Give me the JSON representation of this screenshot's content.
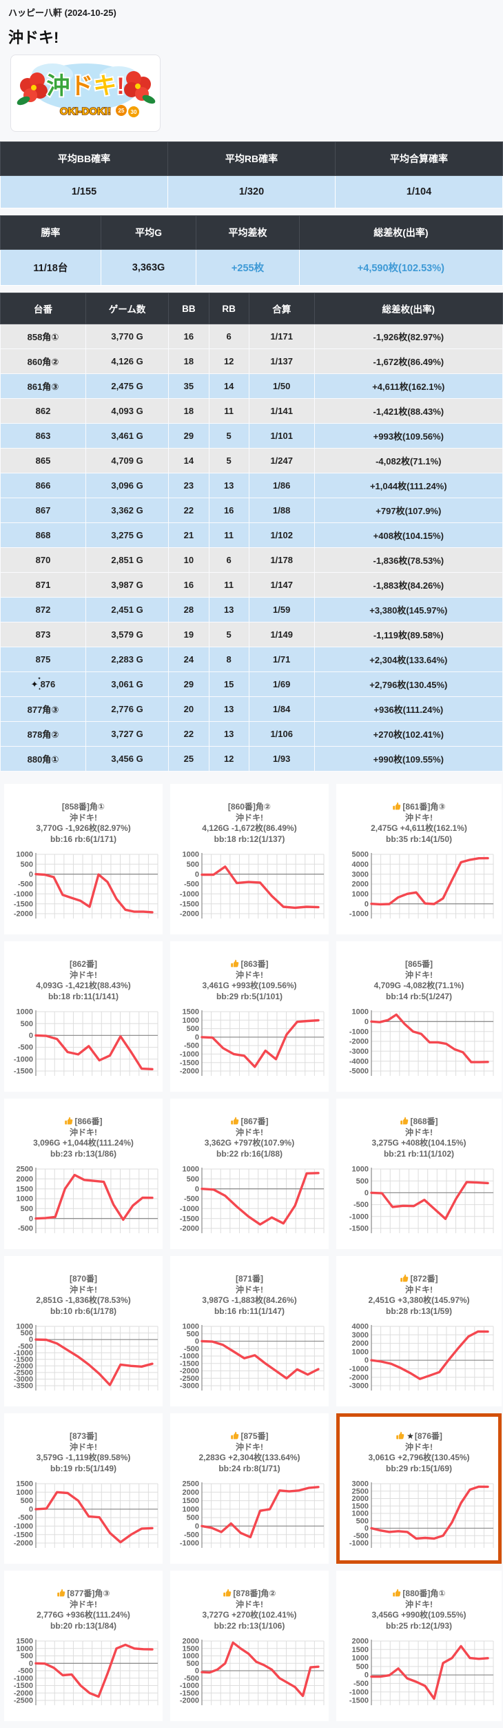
{
  "page": {
    "hall_name": "ハッピー八軒 (2024-10-25)",
    "machine_title": "沖ドキ!",
    "logo_alt": "沖ドキ!",
    "logo_banner": "OKI-DOKI!"
  },
  "icons": {
    "sparkles": "✦",
    "star": "★"
  },
  "colors": {
    "header_bg": "#31363d",
    "positive_row_bg": "#c9e2f6",
    "negative_row_bg": "#e9e9e9",
    "accent_blue": "#3f9ad6",
    "chart_line": "#f4474f",
    "highlight_border": "#d2500a",
    "page_bg": "#f7f8fa"
  },
  "summary_prob": {
    "headers": [
      "平均BB確率",
      "平均RB確率",
      "平均合算確率"
    ],
    "values": [
      "1/155",
      "1/320",
      "1/104"
    ]
  },
  "summary_result": {
    "headers": [
      "勝率",
      "平均G",
      "平均差枚",
      "総差枚(出率)"
    ],
    "values": [
      {
        "text": "11/18台",
        "highlight": false
      },
      {
        "text": "3,363G",
        "highlight": false
      },
      {
        "text": "+255枚",
        "highlight": true
      },
      {
        "text": "+4,590枚(102.53%)",
        "highlight": true
      }
    ]
  },
  "machine_table": {
    "headers": [
      "台番",
      "ゲーム数",
      "BB",
      "RB",
      "合算",
      "総差枚(出率)"
    ],
    "rows": [
      {
        "dai": "858角①",
        "games": "3,770 G",
        "bb": "16",
        "rb": "6",
        "gassan": "1/171",
        "total": "-1,926枚(82.97%)",
        "positive": false,
        "sparkle": false
      },
      {
        "dai": "860角②",
        "games": "4,126 G",
        "bb": "18",
        "rb": "12",
        "gassan": "1/137",
        "total": "-1,672枚(86.49%)",
        "positive": false,
        "sparkle": false
      },
      {
        "dai": "861角③",
        "games": "2,475 G",
        "bb": "35",
        "rb": "14",
        "gassan": "1/50",
        "total": "+4,611枚(162.1%)",
        "positive": true,
        "sparkle": false
      },
      {
        "dai": "862",
        "games": "4,093 G",
        "bb": "18",
        "rb": "11",
        "gassan": "1/141",
        "total": "-1,421枚(88.43%)",
        "positive": false,
        "sparkle": false
      },
      {
        "dai": "863",
        "games": "3,461 G",
        "bb": "29",
        "rb": "5",
        "gassan": "1/101",
        "total": "+993枚(109.56%)",
        "positive": true,
        "sparkle": false
      },
      {
        "dai": "865",
        "games": "4,709 G",
        "bb": "14",
        "rb": "5",
        "gassan": "1/247",
        "total": "-4,082枚(71.1%)",
        "positive": false,
        "sparkle": false
      },
      {
        "dai": "866",
        "games": "3,096 G",
        "bb": "23",
        "rb": "13",
        "gassan": "1/86",
        "total": "+1,044枚(111.24%)",
        "positive": true,
        "sparkle": false
      },
      {
        "dai": "867",
        "games": "3,362 G",
        "bb": "22",
        "rb": "16",
        "gassan": "1/88",
        "total": "+797枚(107.9%)",
        "positive": true,
        "sparkle": false
      },
      {
        "dai": "868",
        "games": "3,275 G",
        "bb": "21",
        "rb": "11",
        "gassan": "1/102",
        "total": "+408枚(104.15%)",
        "positive": true,
        "sparkle": false
      },
      {
        "dai": "870",
        "games": "2,851 G",
        "bb": "10",
        "rb": "6",
        "gassan": "1/178",
        "total": "-1,836枚(78.53%)",
        "positive": false,
        "sparkle": false
      },
      {
        "dai": "871",
        "games": "3,987 G",
        "bb": "16",
        "rb": "11",
        "gassan": "1/147",
        "total": "-1,883枚(84.26%)",
        "positive": false,
        "sparkle": false
      },
      {
        "dai": "872",
        "games": "2,451 G",
        "bb": "28",
        "rb": "13",
        "gassan": "1/59",
        "total": "+3,380枚(145.97%)",
        "positive": true,
        "sparkle": false
      },
      {
        "dai": "873",
        "games": "3,579 G",
        "bb": "19",
        "rb": "5",
        "gassan": "1/149",
        "total": "-1,119枚(89.58%)",
        "positive": false,
        "sparkle": false
      },
      {
        "dai": "875",
        "games": "2,283 G",
        "bb": "24",
        "rb": "8",
        "gassan": "1/71",
        "total": "+2,304枚(133.64%)",
        "positive": true,
        "sparkle": false
      },
      {
        "dai": "876",
        "games": "3,061 G",
        "bb": "29",
        "rb": "15",
        "gassan": "1/69",
        "total": "+2,796枚(130.45%)",
        "positive": true,
        "sparkle": true
      },
      {
        "dai": "877角③",
        "games": "2,776 G",
        "bb": "20",
        "rb": "13",
        "gassan": "1/84",
        "total": "+936枚(111.24%)",
        "positive": true,
        "sparkle": false
      },
      {
        "dai": "878角②",
        "games": "3,727 G",
        "bb": "22",
        "rb": "13",
        "gassan": "1/106",
        "total": "+270枚(102.41%)",
        "positive": true,
        "sparkle": false
      },
      {
        "dai": "880角①",
        "games": "3,456 G",
        "bb": "25",
        "rb": "12",
        "gassan": "1/93",
        "total": "+990枚(109.55%)",
        "positive": true,
        "sparkle": false
      }
    ]
  },
  "chart_data": [
    {
      "type": "line",
      "label": "[858番]角①",
      "thumb": false,
      "star": false,
      "subtitle": "沖ドキ!",
      "stats": "3,770G -1,926枚(82.97%)",
      "bb_rb": "bb:16 rb:6(1/171)",
      "highlight": false,
      "yticks": [
        1000,
        500,
        0,
        -500,
        -1000,
        -1500,
        -2000
      ],
      "values": [
        0,
        -30,
        -150,
        -1050,
        -1200,
        -1350,
        -1650,
        -20,
        -400,
        -1250,
        -1800,
        -1900,
        -1900,
        -1926
      ]
    },
    {
      "type": "line",
      "label": "[860番]角②",
      "thumb": false,
      "star": false,
      "subtitle": "沖ドキ!",
      "stats": "4,126G -1,672枚(86.49%)",
      "bb_rb": "bb:18 rb:12(1/137)",
      "highlight": false,
      "yticks": [
        1000,
        500,
        0,
        -500,
        -1000,
        -1500,
        -2000
      ],
      "values": [
        -30,
        -30,
        380,
        -450,
        -400,
        -430,
        -1100,
        -1650,
        -1700,
        -1650,
        -1672
      ]
    },
    {
      "type": "line",
      "label": "[861番]角③",
      "thumb": true,
      "star": false,
      "subtitle": "沖ドキ!",
      "stats": "2,475G +4,611枚(162.1%)",
      "bb_rb": "bb:35 rb:14(1/50)",
      "highlight": false,
      "yticks": [
        5000,
        4000,
        3000,
        2000,
        1000,
        0,
        -1000
      ],
      "values": [
        0,
        -50,
        -20,
        650,
        1000,
        1150,
        30,
        -20,
        550,
        2400,
        4200,
        4450,
        4600,
        4611
      ]
    },
    {
      "type": "line",
      "label": "[862番]",
      "thumb": false,
      "star": false,
      "subtitle": "沖ドキ!",
      "stats": "4,093G -1,421枚(88.43%)",
      "bb_rb": "bb:18 rb:11(1/141)",
      "highlight": false,
      "yticks": [
        1000,
        500,
        0,
        -500,
        -1000,
        -1500
      ],
      "values": [
        0,
        -20,
        -150,
        -700,
        -800,
        -450,
        -1050,
        -850,
        -40,
        -700,
        -1400,
        -1421
      ]
    },
    {
      "type": "line",
      "label": "[863番]",
      "thumb": true,
      "star": false,
      "subtitle": "沖ドキ!",
      "stats": "3,461G +993枚(109.56%)",
      "bb_rb": "bb:29 rb:5(1/101)",
      "highlight": false,
      "yticks": [
        1500,
        1000,
        500,
        0,
        -500,
        -1000,
        -1500,
        -2000
      ],
      "values": [
        0,
        -30,
        -650,
        -1000,
        -1100,
        -1750,
        -800,
        -1300,
        150,
        900,
        950,
        993
      ]
    },
    {
      "type": "line",
      "label": "[865番]",
      "thumb": false,
      "star": false,
      "subtitle": "沖ドキ!",
      "stats": "4,709G -4,082枚(71.1%)",
      "bb_rb": "bb:14 rb:5(1/247)",
      "highlight": false,
      "yticks": [
        1000,
        0,
        -1000,
        -2000,
        -3000,
        -4000,
        -5000
      ],
      "values": [
        0,
        -60,
        150,
        700,
        -250,
        -1000,
        -1250,
        -2100,
        -2100,
        -2250,
        -2800,
        -3100,
        -4100,
        -4100,
        -4082
      ]
    },
    {
      "type": "line",
      "label": "[866番]",
      "thumb": true,
      "star": false,
      "subtitle": "沖ドキ!",
      "stats": "3,096G +1,044枚(111.24%)",
      "bb_rb": "bb:23 rb:13(1/86)",
      "highlight": false,
      "yticks": [
        2500,
        2000,
        1500,
        1000,
        500,
        0,
        -500
      ],
      "values": [
        0,
        20,
        80,
        1500,
        2200,
        1950,
        1900,
        1850,
        700,
        -60,
        650,
        1050,
        1044
      ]
    },
    {
      "type": "line",
      "label": "[867番]",
      "thumb": true,
      "star": false,
      "subtitle": "沖ドキ!",
      "stats": "3,362G +797枚(107.9%)",
      "bb_rb": "bb:22 rb:16(1/88)",
      "highlight": false,
      "yticks": [
        1000,
        500,
        0,
        -500,
        -1000,
        -1500,
        -2000
      ],
      "values": [
        0,
        -40,
        -350,
        -900,
        -1400,
        -1800,
        -1450,
        -1750,
        -850,
        780,
        797
      ]
    },
    {
      "type": "line",
      "label": "[868番]",
      "thumb": true,
      "star": false,
      "subtitle": "沖ドキ!",
      "stats": "3,275G +408枚(104.15%)",
      "bb_rb": "bb:21 rb:11(1/102)",
      "highlight": false,
      "yticks": [
        1000,
        500,
        0,
        -500,
        -1000,
        -1500
      ],
      "values": [
        0,
        -20,
        -600,
        -550,
        -560,
        -300,
        -700,
        -1100,
        -250,
        450,
        430,
        408
      ]
    },
    {
      "type": "line",
      "label": "[870番]",
      "thumb": false,
      "star": false,
      "subtitle": "沖ドキ!",
      "stats": "2,851G -1,836枚(78.53%)",
      "bb_rb": "bb:10 rb:6(1/178)",
      "highlight": false,
      "yticks": [
        1000,
        500,
        0,
        -500,
        -1000,
        -1500,
        -2000,
        -2500,
        -3000,
        -3500
      ],
      "values": [
        0,
        -20,
        -300,
        -800,
        -1300,
        -1900,
        -2600,
        -3450,
        -1900,
        -2000,
        -2050,
        -1836
      ]
    },
    {
      "type": "line",
      "label": "[871番]",
      "thumb": false,
      "star": false,
      "subtitle": "沖ドキ!",
      "stats": "3,987G -1,883枚(84.26%)",
      "bb_rb": "bb:16 rb:11(1/147)",
      "highlight": false,
      "yticks": [
        1000,
        500,
        0,
        -500,
        -1000,
        -1500,
        -2000,
        -2500,
        -3000
      ],
      "values": [
        0,
        -30,
        -250,
        -700,
        -1150,
        -950,
        -1500,
        -2000,
        -2500,
        -1900,
        -2250,
        -1883
      ]
    },
    {
      "type": "line",
      "label": "[872番]",
      "thumb": true,
      "star": false,
      "subtitle": "沖ドキ!",
      "stats": "2,451G +3,380枚(145.97%)",
      "bb_rb": "bb:28 rb:13(1/59)",
      "highlight": false,
      "yticks": [
        4000,
        3000,
        2000,
        1000,
        0,
        -1000,
        -2000,
        -3000
      ],
      "values": [
        0,
        -150,
        -400,
        -900,
        -1500,
        -2200,
        -1800,
        -1400,
        100,
        1500,
        2800,
        3400,
        3380
      ]
    },
    {
      "type": "line",
      "label": "[873番]",
      "thumb": false,
      "star": false,
      "subtitle": "沖ドキ!",
      "stats": "3,579G -1,119枚(89.58%)",
      "bb_rb": "bb:19 rb:5(1/149)",
      "highlight": false,
      "yticks": [
        1500,
        1000,
        500,
        0,
        -500,
        -1000,
        -1500,
        -2000
      ],
      "values": [
        0,
        30,
        1000,
        950,
        500,
        -430,
        -480,
        -1400,
        -1950,
        -1500,
        -1150,
        -1119
      ]
    },
    {
      "type": "line",
      "label": "[875番]",
      "thumb": true,
      "star": false,
      "subtitle": "沖ドキ!",
      "stats": "2,283G +2,304枚(133.64%)",
      "bb_rb": "bb:24 rb:8(1/71)",
      "highlight": false,
      "yticks": [
        2500,
        2000,
        1500,
        1000,
        500,
        0,
        -500,
        -1000
      ],
      "values": [
        0,
        -100,
        -350,
        150,
        -400,
        -650,
        900,
        1000,
        2100,
        2050,
        2100,
        2250,
        2304
      ]
    },
    {
      "type": "line",
      "label": "[876番]",
      "thumb": true,
      "star": true,
      "subtitle": "沖ドキ!",
      "stats": "3,061G +2,796枚(130.45%)",
      "bb_rb": "bb:29 rb:15(1/69)",
      "highlight": true,
      "yticks": [
        3000,
        2500,
        2000,
        1500,
        1000,
        500,
        0,
        -500,
        -1000
      ],
      "values": [
        0,
        -150,
        -250,
        -200,
        -250,
        -700,
        -650,
        -700,
        -500,
        400,
        1700,
        2600,
        2800,
        2796
      ]
    },
    {
      "type": "line",
      "label": "[877番]角③",
      "thumb": true,
      "star": false,
      "subtitle": "沖ドキ!",
      "stats": "2,776G +936枚(111.24%)",
      "bb_rb": "bb:20 rb:13(1/84)",
      "highlight": false,
      "yticks": [
        1500,
        1000,
        500,
        0,
        -500,
        -1000,
        -1500,
        -2000,
        -2500
      ],
      "values": [
        0,
        -20,
        -300,
        -800,
        -750,
        -1500,
        -2000,
        -2250,
        -700,
        1000,
        1250,
        1000,
        950,
        936
      ]
    },
    {
      "type": "line",
      "label": "[878番]角②",
      "thumb": true,
      "star": false,
      "subtitle": "沖ドキ!",
      "stats": "3,727G +270枚(102.41%)",
      "bb_rb": "bb:22 rb:13(1/106)",
      "highlight": false,
      "yticks": [
        2000,
        1500,
        1000,
        500,
        0,
        -500,
        -1000,
        -1500,
        -2000
      ],
      "values": [
        -100,
        -120,
        80,
        500,
        1900,
        1500,
        1150,
        600,
        380,
        80,
        -500,
        -800,
        -1100,
        -1700,
        230,
        270
      ]
    },
    {
      "type": "line",
      "label": "[880番]角①",
      "thumb": true,
      "star": false,
      "subtitle": "沖ドキ!",
      "stats": "3,456G +990枚(109.55%)",
      "bb_rb": "bb:25 rb:12(1/93)",
      "highlight": false,
      "yticks": [
        2000,
        1500,
        1000,
        500,
        0,
        -500,
        -1000,
        -1500
      ],
      "values": [
        -100,
        -100,
        -20,
        380,
        -200,
        -400,
        -650,
        -1400,
        700,
        1000,
        1700,
        1000,
        950,
        990
      ]
    }
  ]
}
